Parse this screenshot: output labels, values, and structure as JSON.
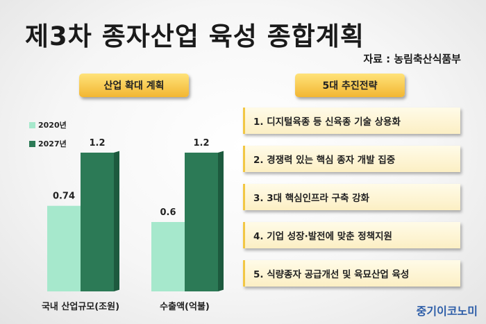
{
  "title": "제3차 종자산업 육성 종합계획",
  "source": "자료 : 농림축산식품부",
  "left_header": "산업 확대 계획",
  "right_header": "5대 추진전략",
  "strategies": [
    "1. 디지털육종 등 신육종 기술 상용화",
    "2. 경쟁력 있는 핵심 종자 개발 집중",
    "3. 3대 핵심인프라 구축 강화",
    "4. 기업 성장·발전에 맞춘 정책지원",
    "5. 식량종자 공급개선 및 육묘산업 육성"
  ],
  "brand": "중기이코노미",
  "colors": {
    "series_2020": "#a6e8cc",
    "series_2027": "#2c7a56",
    "header": "#f5c240"
  },
  "chart_data": {
    "type": "bar",
    "categories": [
      "국내 산업규모(조원)",
      "수출액(억불)"
    ],
    "series": [
      {
        "name": "2020년",
        "values": [
          0.74,
          0.6
        ],
        "labels": [
          "0.74",
          "0.6"
        ]
      },
      {
        "name": "2027년",
        "values": [
          1.2,
          1.2
        ],
        "labels": [
          "1.2",
          "1.2"
        ]
      }
    ],
    "legend": "top-left",
    "grid": false
  }
}
